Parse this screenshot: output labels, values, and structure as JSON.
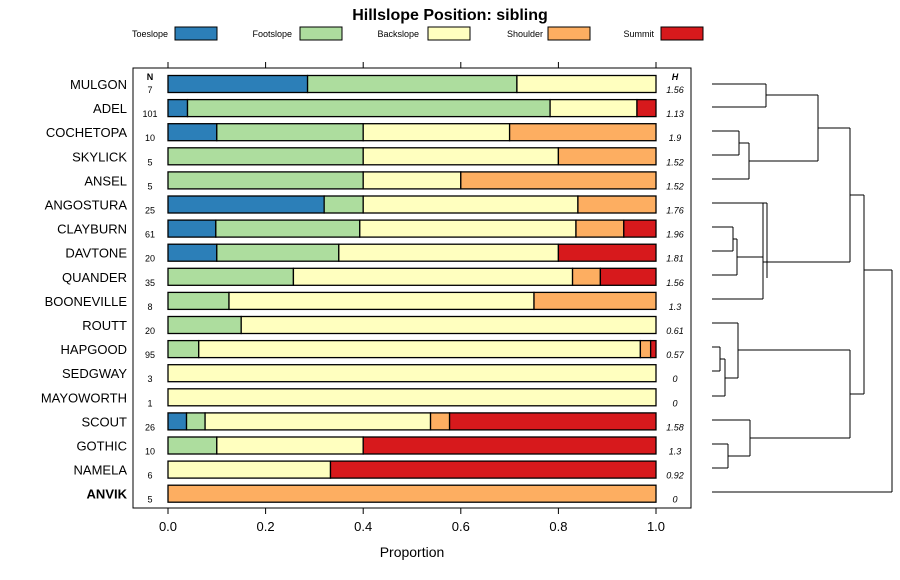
{
  "chart_data": {
    "type": "bar",
    "stacked": true,
    "orientation": "horizontal",
    "title": "Hillslope Position: sibling",
    "xlabel": "Proportion",
    "xlim": [
      0,
      1
    ],
    "xticks": [
      "0.0",
      "0.2",
      "0.4",
      "0.6",
      "0.8",
      "1.0"
    ],
    "n_header": "N",
    "h_header": "H",
    "legend": [
      {
        "name": "Toeslope",
        "color": "#2C7FB8"
      },
      {
        "name": "Footslope",
        "color": "#ADDD9E"
      },
      {
        "name": "Backslope",
        "color": "#FFFFBF"
      },
      {
        "name": "Shoulder",
        "color": "#FDAE61"
      },
      {
        "name": "Summit",
        "color": "#D7191C"
      }
    ],
    "rows": [
      {
        "label": "MULGON",
        "n": "7",
        "h": "1.56",
        "bold": false,
        "values": [
          0.286,
          0.429,
          0.285,
          0,
          0
        ]
      },
      {
        "label": "ADEL",
        "n": "101",
        "h": "1.13",
        "bold": false,
        "values": [
          0.04,
          0.743,
          0.178,
          0,
          0.039
        ]
      },
      {
        "label": "COCHETOPA",
        "n": "10",
        "h": "1.9",
        "bold": false,
        "values": [
          0.1,
          0.3,
          0.3,
          0.3,
          0
        ]
      },
      {
        "label": "SKYLICK",
        "n": "5",
        "h": "1.52",
        "bold": false,
        "values": [
          0,
          0.4,
          0.4,
          0.2,
          0
        ]
      },
      {
        "label": "ANSEL",
        "n": "5",
        "h": "1.52",
        "bold": false,
        "values": [
          0,
          0.4,
          0.2,
          0.4,
          0
        ]
      },
      {
        "label": "ANGOSTURA",
        "n": "25",
        "h": "1.76",
        "bold": false,
        "values": [
          0.32,
          0.08,
          0.44,
          0.16,
          0
        ]
      },
      {
        "label": "CLAYBURN",
        "n": "61",
        "h": "1.96",
        "bold": false,
        "values": [
          0.098,
          0.295,
          0.443,
          0.098,
          0.066
        ]
      },
      {
        "label": "DAVTONE",
        "n": "20",
        "h": "1.81",
        "bold": false,
        "values": [
          0.1,
          0.25,
          0.45,
          0,
          0.2
        ]
      },
      {
        "label": "QUANDER",
        "n": "35",
        "h": "1.56",
        "bold": false,
        "values": [
          0,
          0.257,
          0.572,
          0.057,
          0.114
        ]
      },
      {
        "label": "BOONEVILLE",
        "n": "8",
        "h": "1.3",
        "bold": false,
        "values": [
          0,
          0.125,
          0.625,
          0.25,
          0
        ]
      },
      {
        "label": "ROUTT",
        "n": "20",
        "h": "0.61",
        "bold": false,
        "values": [
          0,
          0.15,
          0.85,
          0,
          0
        ]
      },
      {
        "label": "HAPGOOD",
        "n": "95",
        "h": "0.57",
        "bold": false,
        "values": [
          0,
          0.063,
          0.905,
          0.021,
          0.011
        ]
      },
      {
        "label": "SEDGWAY",
        "n": "3",
        "h": "0",
        "bold": false,
        "values": [
          0,
          0,
          1,
          0,
          0
        ]
      },
      {
        "label": "MAYOWORTH",
        "n": "1",
        "h": "0",
        "bold": false,
        "values": [
          0,
          0,
          1,
          0,
          0
        ]
      },
      {
        "label": "SCOUT",
        "n": "26",
        "h": "1.58",
        "bold": false,
        "values": [
          0.038,
          0.038,
          0.462,
          0.039,
          0.423
        ]
      },
      {
        "label": "GOTHIC",
        "n": "10",
        "h": "1.3",
        "bold": false,
        "values": [
          0,
          0.1,
          0.3,
          0,
          0.6
        ]
      },
      {
        "label": "NAMELA",
        "n": "6",
        "h": "0.92",
        "bold": false,
        "values": [
          0,
          0,
          0.333,
          0,
          0.667
        ]
      },
      {
        "label": "ANVIK",
        "n": "5",
        "h": "0",
        "bold": true,
        "values": [
          0,
          0,
          0,
          1,
          0
        ]
      }
    ]
  }
}
